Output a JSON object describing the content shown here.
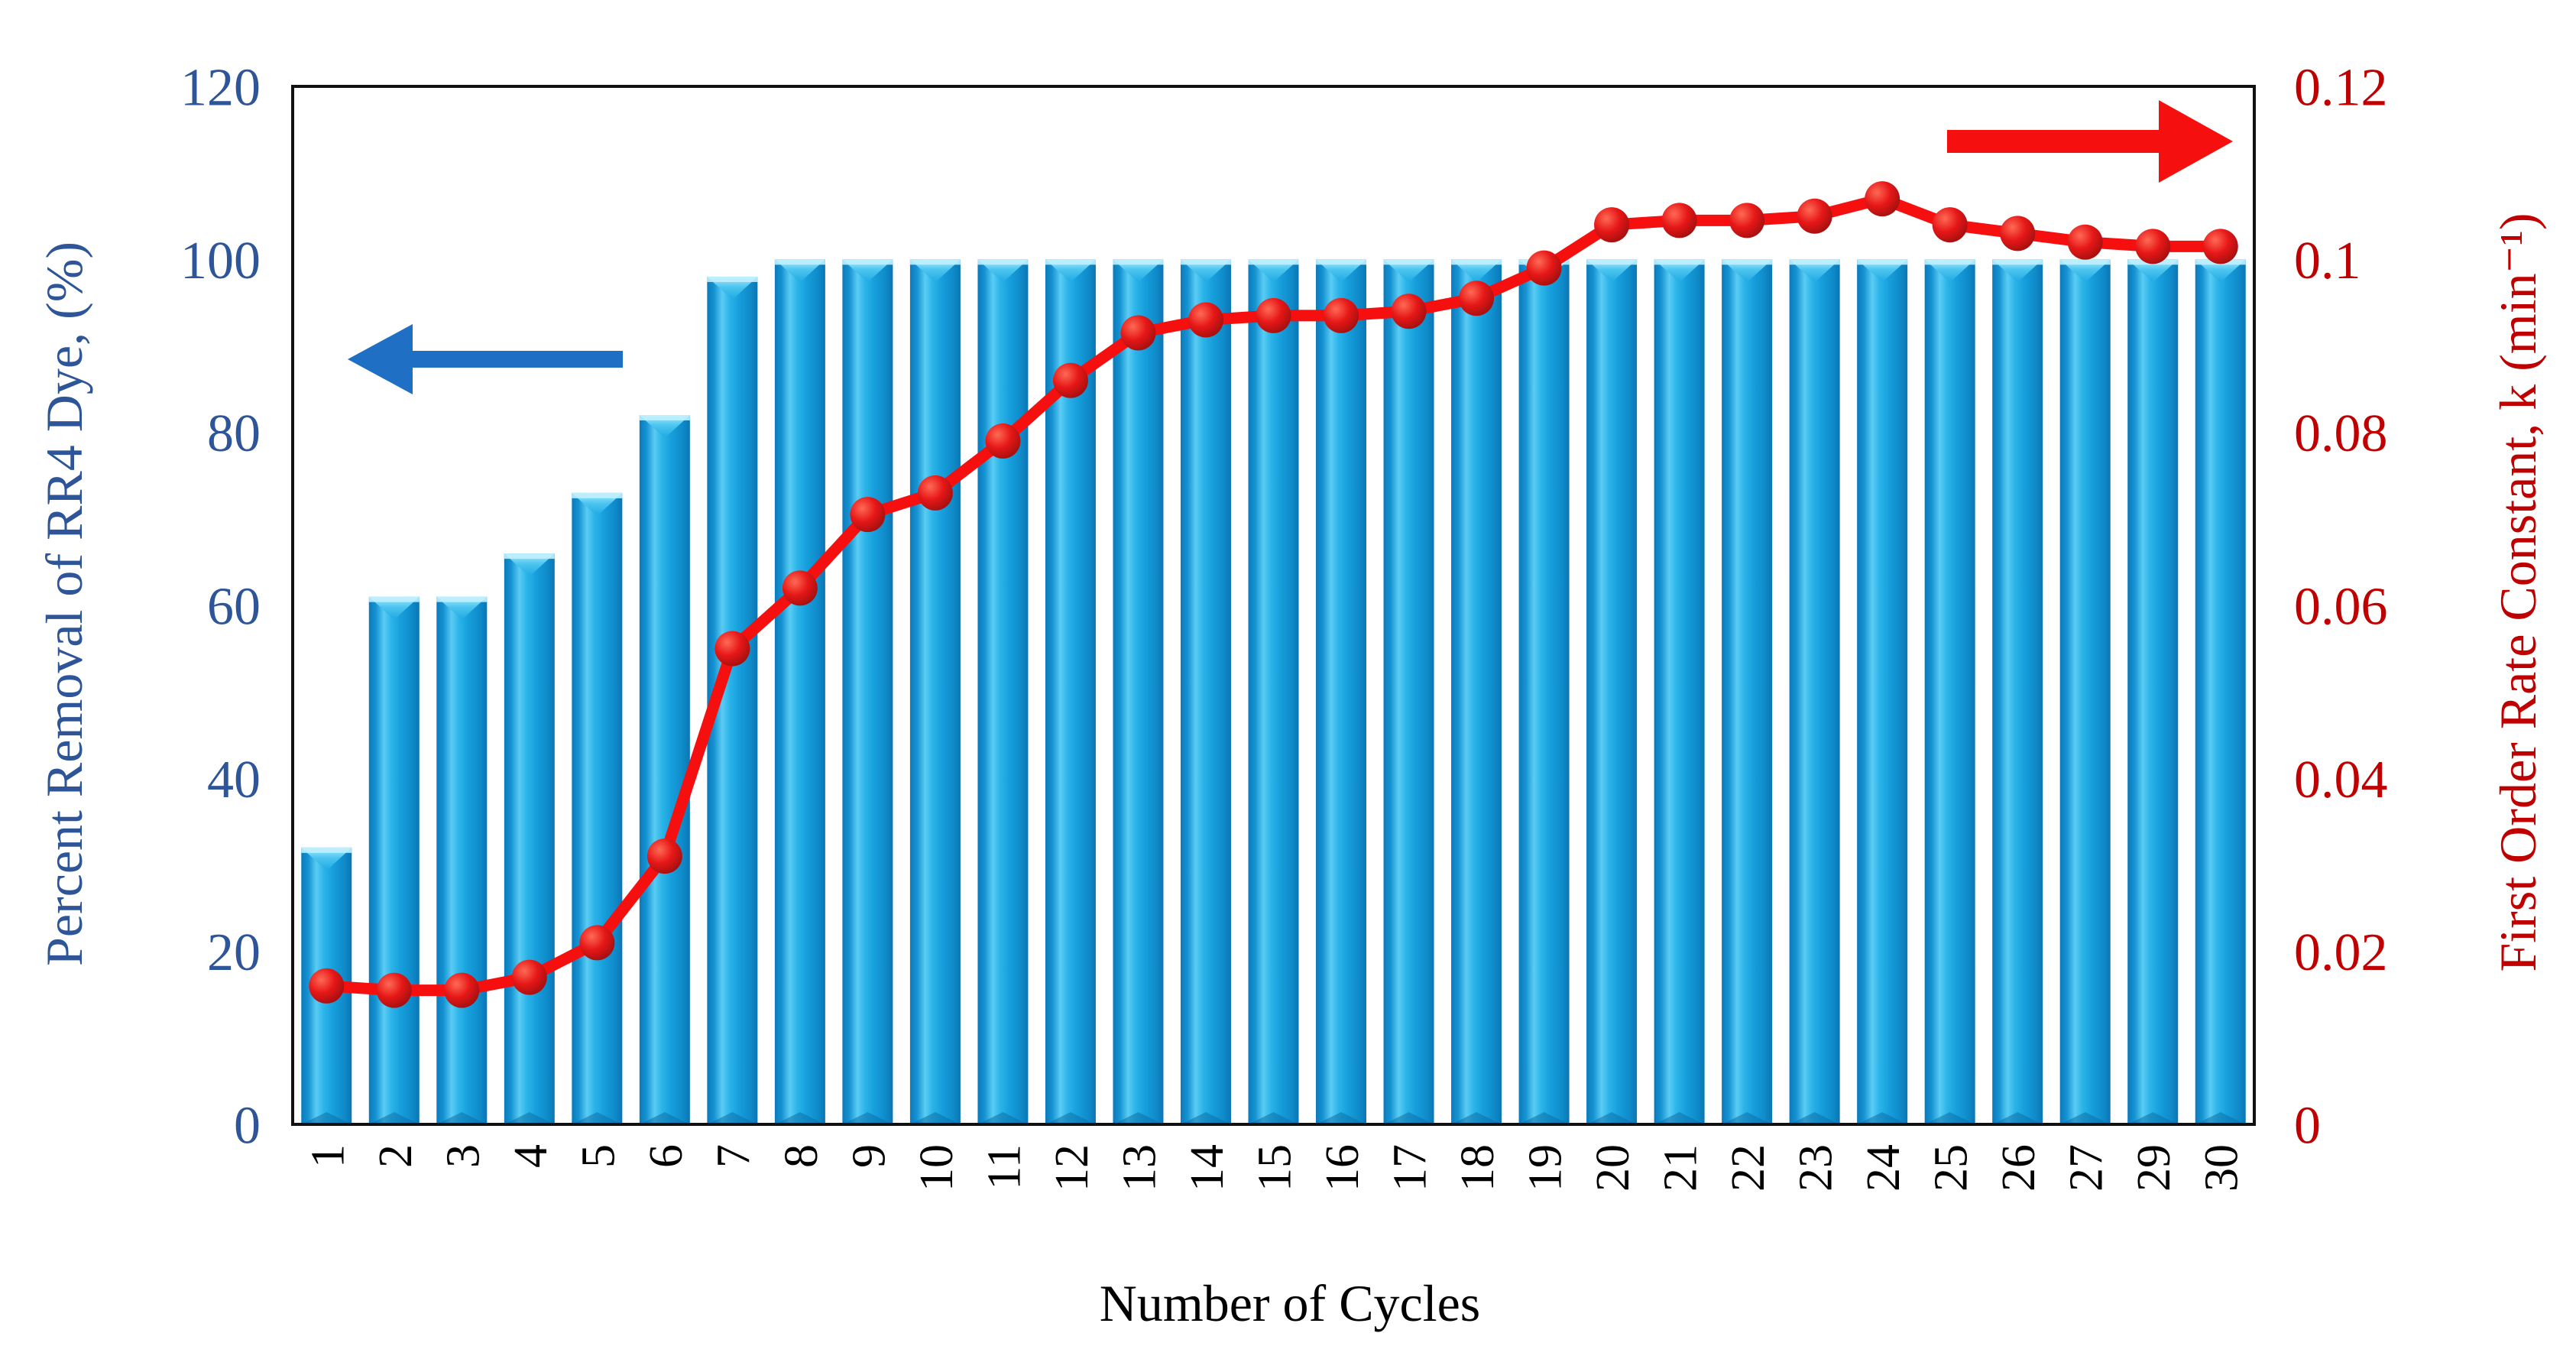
{
  "chart_data": {
    "type": "combo",
    "categories": [
      "1",
      "2",
      "3",
      "4",
      "5",
      "6",
      "7",
      "8",
      "9",
      "10",
      "11",
      "12",
      "13",
      "14",
      "15",
      "16",
      "17",
      "18",
      "19",
      "20",
      "21",
      "22",
      "23",
      "24",
      "25",
      "26",
      "27",
      "29",
      "30"
    ],
    "series": [
      {
        "name": "Percent Removal of RR4 Dye",
        "type": "bar",
        "axis": "left",
        "color": "#1EA5DF",
        "values": [
          32,
          61,
          61,
          66,
          73,
          82,
          98,
          100,
          100,
          100,
          100,
          100,
          100,
          100,
          100,
          100,
          100,
          100,
          100,
          100,
          100,
          100,
          100,
          100,
          100,
          100,
          100,
          100,
          100
        ]
      },
      {
        "name": "First Order Rate Constant, k",
        "type": "line",
        "axis": "right",
        "color": "#F50F0F",
        "marker_color": "#B00E0E",
        "values": [
          0.016,
          0.0155,
          0.0155,
          0.017,
          0.021,
          0.031,
          0.055,
          0.062,
          0.0705,
          0.073,
          0.079,
          0.086,
          0.0915,
          0.093,
          0.0935,
          0.0935,
          0.094,
          0.0955,
          0.099,
          0.104,
          0.1045,
          0.1045,
          0.105,
          0.107,
          0.104,
          0.103,
          0.102,
          0.1015,
          0.1015
        ]
      }
    ],
    "x_axis": {
      "label": "Number of Cycles",
      "tick_color": "#000000"
    },
    "left_axis": {
      "label": "Percent Removal of RR4 Dye, (%)",
      "ticks": [
        "0",
        "20",
        "40",
        "60",
        "80",
        "100",
        "120"
      ],
      "range": [
        0,
        120
      ],
      "color": "#2E5597"
    },
    "right_axis": {
      "label": "First Order Rate Constant, k (min⁻¹)",
      "ticks": [
        "0",
        "0.02",
        "0.04",
        "0.06",
        "0.08",
        "0.1",
        "0.12"
      ],
      "range": [
        0,
        0.12
      ],
      "color": "#C00000"
    },
    "annotations": [
      {
        "type": "arrow",
        "direction": "left",
        "color": "#1F6FC4",
        "meaning": "bars read left axis"
      },
      {
        "type": "arrow",
        "direction": "right",
        "color": "#F50F0F",
        "meaning": "line reads right axis"
      }
    ],
    "grid": false,
    "legend": false
  }
}
